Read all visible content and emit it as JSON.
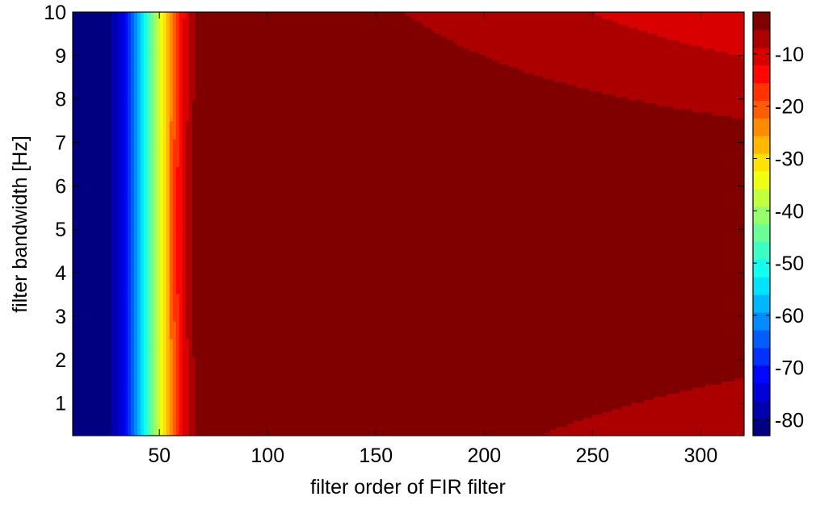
{
  "chart_data": {
    "type": "heatmap",
    "subtype": "filled-contour",
    "colormap": "jet",
    "xlabel": "filter order of FIR filter",
    "ylabel": "filter bandwidth [Hz]",
    "xlim": [
      10,
      320
    ],
    "ylim": [
      0.25,
      10
    ],
    "xticks": [
      50,
      100,
      150,
      200,
      250,
      300
    ],
    "yticks": [
      1,
      2,
      3,
      4,
      5,
      6,
      7,
      8,
      9,
      10
    ],
    "colorbar": {
      "label": "",
      "range": [
        -83,
        -2
      ],
      "ticks": [
        -10,
        -20,
        -30,
        -40,
        -50,
        -60,
        -70,
        -80
      ]
    },
    "z_description": "Filled contour levels (dB); minimum near -83 at low filter order, maximum near -2 around order 100-200 at 5 Hz bandwidth"
  }
}
